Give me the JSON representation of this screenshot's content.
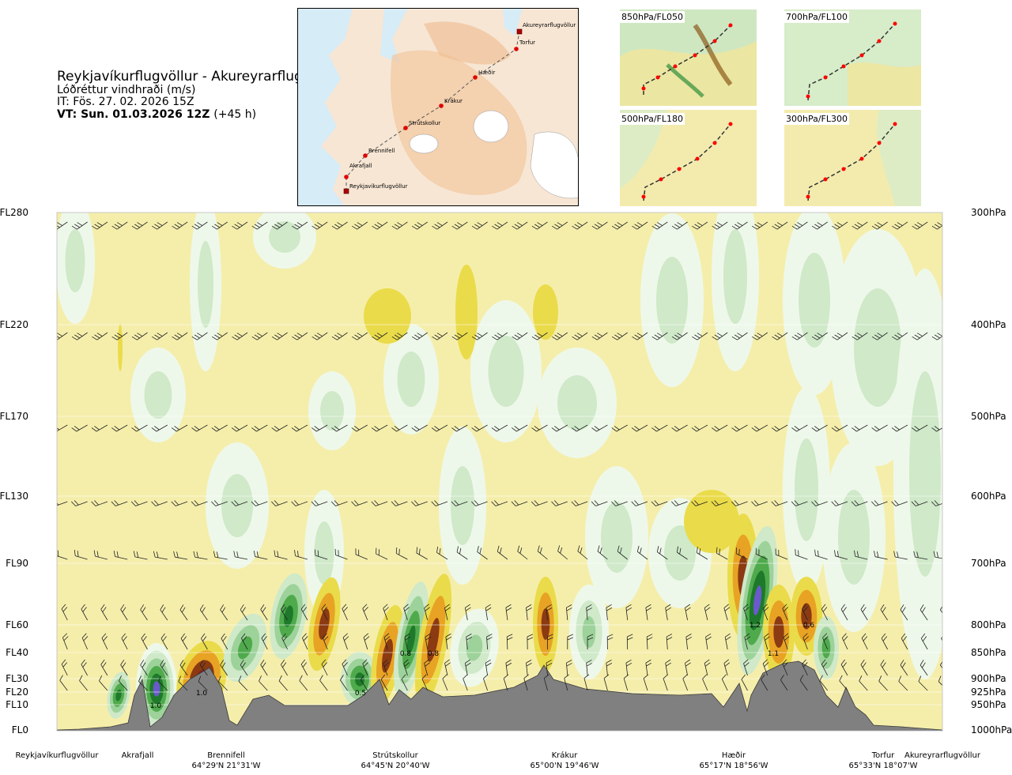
{
  "header": {
    "route": "Reykjavíkurflugvöllur - Akureyrarflugvöllur",
    "subtitle": "Lóðréttur vindhraði (m/s)",
    "issue_time": "IT: Fös. 27. 02. 2026 15Z",
    "valid_lead": "VT: ",
    "valid_time": "Sun. 01.03.2026 12Z",
    "lead_time": "(+45 h)"
  },
  "route_map": {
    "points": [
      {
        "name": "Akureyrarflugvöllur",
        "kind": "airport"
      },
      {
        "name": "Torfur",
        "kind": "waypoint"
      },
      {
        "name": "Hæðir",
        "kind": "waypoint"
      },
      {
        "name": "Krákur",
        "kind": "waypoint"
      },
      {
        "name": "Strútskollur",
        "kind": "waypoint"
      },
      {
        "name": "Brennifell",
        "kind": "waypoint"
      },
      {
        "name": "Akrafjall",
        "kind": "waypoint"
      },
      {
        "name": "Reykjavíkurflugvöllur",
        "kind": "airport"
      }
    ]
  },
  "level_maps": [
    {
      "label": "850hPa/FL050"
    },
    {
      "label": "700hPa/FL100"
    },
    {
      "label": "500hPa/FL180"
    },
    {
      "label": "300hPa/FL300"
    }
  ],
  "colors": {
    "strong_up": "#6a5acd",
    "up_dark": "#1e7a2a",
    "up_mid": "#4faa4c",
    "up_light": "#9dd29a",
    "up_pale": "#cfe9c9",
    "up_faint": "#eef8ea",
    "background": "#f5eeab",
    "down_light": "#eadb4a",
    "down_mid": "#e8a324",
    "down_dark": "#8b3a12",
    "down_strong": "#8b1c1c",
    "terrain": "#808080"
  },
  "chart_data": {
    "type": "cross-section",
    "x_axis": {
      "locations": [
        {
          "name": "Reykjavíkurflugvöllur",
          "coord": ""
        },
        {
          "name": "Akrafjall",
          "coord": ""
        },
        {
          "name": "Brennifell",
          "coord": "64°29'N 21°31'W"
        },
        {
          "name": "Strútskollur",
          "coord": "64°45'N 20°40'W"
        },
        {
          "name": "Krákur",
          "coord": "65°00'N 19°46'W"
        },
        {
          "name": "Hæðir",
          "coord": "65°17'N 18°56'W"
        },
        {
          "name": "Torfur",
          "coord": "65°33'N 18°07'W"
        },
        {
          "name": "Akureyrarflugvöllur",
          "coord": ""
        }
      ]
    },
    "y_axis_left": [
      "FL280",
      "FL220",
      "FL170",
      "FL130",
      "FL90",
      "FL60",
      "FL40",
      "FL30",
      "FL20",
      "FL10",
      "FL0"
    ],
    "y_axis_right": [
      "300hPa",
      "400hPa",
      "500hPa",
      "600hPa",
      "700hPa",
      "800hPa",
      "850hPa",
      "900hPa",
      "925hPa",
      "950hPa",
      "1000hPa"
    ],
    "value_labels": [
      "1.0",
      "1.0",
      "0.5",
      "0.8",
      "0.8",
      "1.2",
      "1.1",
      "0.6"
    ],
    "wind_barb_levels": [
      "FL280",
      "FL220",
      "FL170",
      "FL130",
      "FL90",
      "FL60",
      "FL40",
      "FL30",
      "FL20"
    ]
  }
}
